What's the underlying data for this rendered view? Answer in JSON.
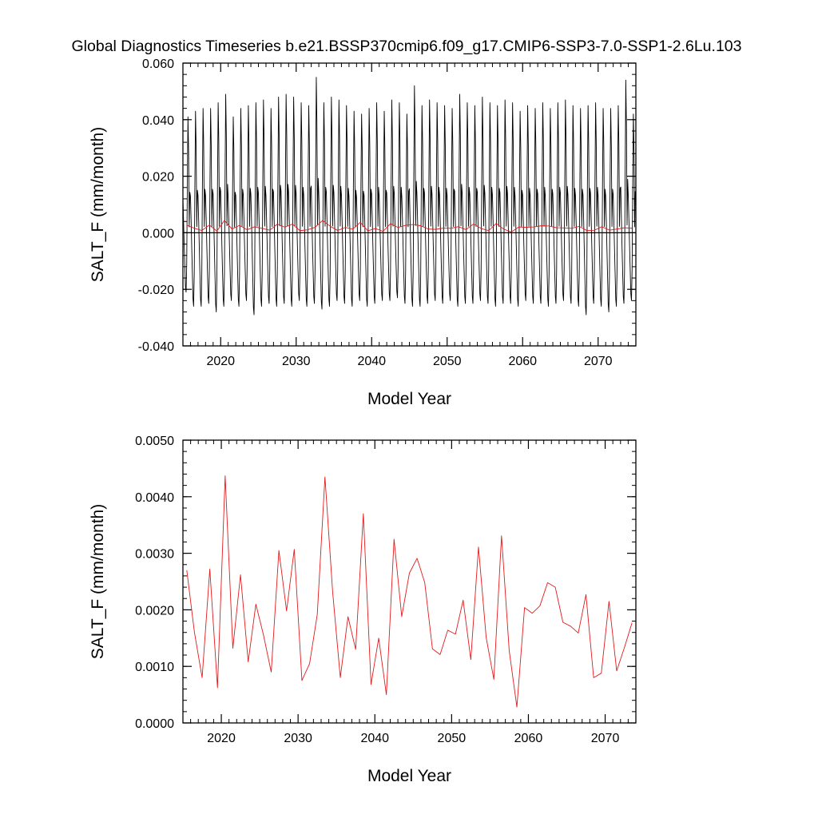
{
  "figure": {
    "title": "Global Diagnostics Timeseries b.e21.BSSP370cmip6.f09_g17.CMIP6-SSP3-7.0-SSP1-2.6Lu.103"
  },
  "chart_data": [
    {
      "type": "line",
      "id": "monthly",
      "xlabel": "Model Year",
      "ylabel": "SALT_F (mm/month)",
      "xlim": [
        2015,
        2075
      ],
      "ylim": [
        -0.04,
        0.06
      ],
      "x_ticks": [
        2020,
        2030,
        2040,
        2050,
        2060,
        2070
      ],
      "x_tick_labels": [
        "2020",
        "2030",
        "2040",
        "2050",
        "2060",
        "2070"
      ],
      "y_ticks": [
        -0.04,
        -0.02,
        0.0,
        0.02,
        0.04,
        0.06
      ],
      "y_tick_labels": [
        "-0.040",
        "-0.020",
        "0.000",
        "0.020",
        "0.040",
        "0.060"
      ],
      "reference_line": 0.0,
      "series": [
        {
          "color": "#000000",
          "sampling": "monthly",
          "start_year": 2015,
          "annual_peaks": [
            0.041,
            0.043,
            0.044,
            0.044,
            0.046,
            0.049,
            0.041,
            0.044,
            0.045,
            0.046,
            0.047,
            0.044,
            0.048,
            0.049,
            0.048,
            0.046,
            0.045,
            0.055,
            0.046,
            0.048,
            0.047,
            0.045,
            0.043,
            0.042,
            0.044,
            0.046,
            0.043,
            0.047,
            0.046,
            0.042,
            0.052,
            0.045,
            0.047,
            0.046,
            0.045,
            0.044,
            0.049,
            0.046,
            0.045,
            0.048,
            0.046,
            0.045,
            0.047,
            0.046,
            0.043,
            0.045,
            0.044,
            0.046,
            0.044,
            0.046,
            0.047,
            0.045,
            0.044,
            0.045,
            0.046,
            0.044,
            0.044,
            0.045,
            0.054,
            0.042
          ],
          "annual_troughs": [
            -0.021,
            -0.026,
            -0.026,
            -0.025,
            -0.028,
            -0.026,
            -0.024,
            -0.026,
            -0.024,
            -0.029,
            -0.026,
            -0.025,
            -0.026,
            -0.025,
            -0.026,
            -0.024,
            -0.026,
            -0.025,
            -0.027,
            -0.026,
            -0.024,
            -0.025,
            -0.026,
            -0.024,
            -0.026,
            -0.025,
            -0.024,
            -0.024,
            -0.023,
            -0.025,
            -0.026,
            -0.026,
            -0.025,
            -0.024,
            -0.025,
            -0.024,
            -0.026,
            -0.025,
            -0.025,
            -0.024,
            -0.025,
            -0.026,
            -0.025,
            -0.025,
            -0.026,
            -0.024,
            -0.025,
            -0.025,
            -0.026,
            -0.025,
            -0.024,
            -0.025,
            -0.026,
            -0.029,
            -0.025,
            -0.026,
            -0.028,
            -0.026,
            -0.025,
            -0.024
          ]
        },
        {
          "color": "#e31a1c",
          "sampling": "annual",
          "x": [
            2015.5,
            2016.5,
            2017.5,
            2018.5,
            2019.5,
            2020.5,
            2021.5,
            2022.5,
            2023.5,
            2024.5,
            2025.5,
            2026.5,
            2027.5,
            2028.5,
            2029.5,
            2030.5,
            2031.5,
            2032.5,
            2033.5,
            2034.5,
            2035.5,
            2036.5,
            2037.5,
            2038.5,
            2039.5,
            2040.5,
            2041.5,
            2042.5,
            2043.5,
            2044.5,
            2045.5,
            2046.5,
            2047.5,
            2048.5,
            2049.5,
            2050.5,
            2051.5,
            2052.5,
            2053.5,
            2054.5,
            2055.5,
            2056.5,
            2057.5,
            2058.5,
            2059.5,
            2060.5,
            2061.5,
            2062.5,
            2063.5,
            2064.5,
            2065.5,
            2066.5,
            2067.5,
            2068.5,
            2069.5,
            2070.5,
            2071.5,
            2072.5,
            2073.5,
            2074.5
          ],
          "values": [
            0.0027,
            0.0016,
            0.0008,
            0.00272,
            0.00062,
            0.00437,
            0.00132,
            0.00262,
            0.00108,
            0.0021,
            0.00155,
            0.0009,
            0.00305,
            0.00198,
            0.00307,
            0.00075,
            0.00105,
            0.00192,
            0.00435,
            0.00232,
            0.0008,
            0.00188,
            0.0013,
            0.0037,
            0.00068,
            0.0015,
            0.0005,
            0.00325,
            0.00188,
            0.00265,
            0.00291,
            0.00248,
            0.00131,
            0.00121,
            0.00164,
            0.00157,
            0.00217,
            0.00112,
            0.00311,
            0.00151,
            0.00077,
            0.00331,
            0.00128,
            0.00028,
            0.00204,
            0.00194,
            0.00207,
            0.00248,
            0.0024,
            0.00178,
            0.00171,
            0.00159,
            0.00227,
            0.0008,
            0.00088,
            0.00215,
            0.00092,
            0.00133,
            0.00177,
            0.0016
          ]
        }
      ]
    },
    {
      "type": "line",
      "id": "annual",
      "xlabel": "Model Year",
      "ylabel": "SALT_F (mm/month)",
      "xlim": [
        2015,
        2074
      ],
      "ylim": [
        0.0,
        0.005
      ],
      "x_ticks": [
        2020,
        2030,
        2040,
        2050,
        2060,
        2070
      ],
      "x_tick_labels": [
        "2020",
        "2030",
        "2040",
        "2050",
        "2060",
        "2070"
      ],
      "y_ticks": [
        0.0,
        0.001,
        0.002,
        0.003,
        0.004,
        0.005
      ],
      "y_tick_labels": [
        "0.0000",
        "0.0010",
        "0.0020",
        "0.0030",
        "0.0040",
        "0.0050"
      ],
      "series": [
        {
          "color": "#e31a1c",
          "x": [
            2015.5,
            2016.5,
            2017.5,
            2018.5,
            2019.5,
            2020.5,
            2021.5,
            2022.5,
            2023.5,
            2024.5,
            2025.5,
            2026.5,
            2027.5,
            2028.5,
            2029.5,
            2030.5,
            2031.5,
            2032.5,
            2033.5,
            2034.5,
            2035.5,
            2036.5,
            2037.5,
            2038.5,
            2039.5,
            2040.5,
            2041.5,
            2042.5,
            2043.5,
            2044.5,
            2045.5,
            2046.5,
            2047.5,
            2048.5,
            2049.5,
            2050.5,
            2051.5,
            2052.5,
            2053.5,
            2054.5,
            2055.5,
            2056.5,
            2057.5,
            2058.5,
            2059.5,
            2060.5,
            2061.5,
            2062.5,
            2063.5,
            2064.5,
            2065.5,
            2066.5,
            2067.5,
            2068.5,
            2069.5,
            2070.5,
            2071.5,
            2072.5,
            2073.5
          ],
          "values": [
            0.0027,
            0.0016,
            0.0008,
            0.00272,
            0.00062,
            0.00437,
            0.00132,
            0.00262,
            0.00108,
            0.0021,
            0.00155,
            0.0009,
            0.00305,
            0.00198,
            0.00307,
            0.00075,
            0.00105,
            0.00192,
            0.00435,
            0.00232,
            0.0008,
            0.00188,
            0.0013,
            0.0037,
            0.00068,
            0.0015,
            0.0005,
            0.00325,
            0.00188,
            0.00265,
            0.00291,
            0.00248,
            0.00131,
            0.00121,
            0.00164,
            0.00157,
            0.00217,
            0.00112,
            0.00311,
            0.00151,
            0.00077,
            0.00331,
            0.00128,
            0.00028,
            0.00204,
            0.00194,
            0.00207,
            0.00248,
            0.0024,
            0.00178,
            0.00171,
            0.00159,
            0.00227,
            0.0008,
            0.00088,
            0.00215,
            0.00092,
            0.00133,
            0.00177
          ]
        }
      ]
    }
  ]
}
